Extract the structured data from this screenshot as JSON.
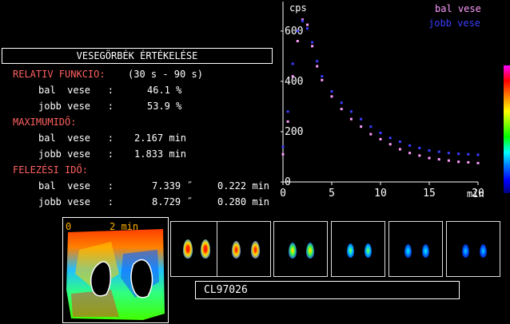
{
  "header": {
    "title": "VESEGÖRBÉK ÉRTÉKELÉSE"
  },
  "relative_function": {
    "heading": "RELATIV FUNKCIO:",
    "range": "(30 s - 90 s)",
    "left_label": "bal  vese   :",
    "left_value": "46.1 %",
    "right_label": "jobb vese   :",
    "right_value": "53.9 %"
  },
  "max_time": {
    "heading": "MAXIMUMIDŐ:",
    "left_label": "bal  vese   :",
    "left_value": "2.167 min",
    "right_label": "jobb vese   :",
    "right_value": "1.833 min"
  },
  "half_time": {
    "heading": "FELEZÉSI IDŐ:",
    "left_label": "bal  vese   :",
    "left_value1": "7.339 ˝",
    "left_value2": "0.222 min",
    "right_label": "jobb vese   :",
    "right_value1": "8.729 ˝",
    "right_value2": "0.280 min"
  },
  "patient_id": "CL97026",
  "map": {
    "label_left": "0",
    "label_right": "2 min"
  },
  "colors": {
    "left_kidney": "#ff9cff",
    "right_kidney": "#3c3cff",
    "heading": "#ff6060",
    "axis": "#ffffff"
  },
  "chart_data": {
    "type": "scatter",
    "title": "",
    "ylabel": "cps",
    "xlabel": "min",
    "x_ticks": [
      0,
      5,
      10,
      15,
      20
    ],
    "y_ticks": [
      0,
      200,
      400,
      600
    ],
    "xlim": [
      0,
      20
    ],
    "ylim": [
      0,
      660
    ],
    "series": [
      {
        "name": "bal vese",
        "color": "#ff9cff",
        "x": [
          0.0,
          0.5,
          1.0,
          1.5,
          2.0,
          2.5,
          3.0,
          3.5,
          4.0,
          5.0,
          6.0,
          7.0,
          8.0,
          9.0,
          10.0,
          11.0,
          12.0,
          13.0,
          14.0,
          15.0,
          16.0,
          17.0,
          18.0,
          19.0,
          20.0
        ],
        "values": [
          110,
          240,
          420,
          560,
          645,
          625,
          540,
          460,
          405,
          340,
          290,
          250,
          220,
          190,
          170,
          150,
          130,
          115,
          105,
          95,
          90,
          85,
          80,
          78,
          75
        ]
      },
      {
        "name": "jobb vese",
        "color": "#3c3cff",
        "x": [
          0.0,
          0.5,
          1.0,
          1.5,
          2.0,
          2.5,
          3.0,
          3.5,
          4.0,
          5.0,
          6.0,
          7.0,
          8.0,
          9.0,
          10.0,
          11.0,
          12.0,
          13.0,
          14.0,
          15.0,
          16.0,
          17.0,
          18.0,
          19.0,
          20.0
        ],
        "values": [
          140,
          280,
          470,
          600,
          640,
          610,
          555,
          480,
          420,
          360,
          315,
          280,
          250,
          220,
          195,
          175,
          160,
          145,
          135,
          125,
          120,
          115,
          112,
          110,
          108
        ]
      }
    ]
  }
}
